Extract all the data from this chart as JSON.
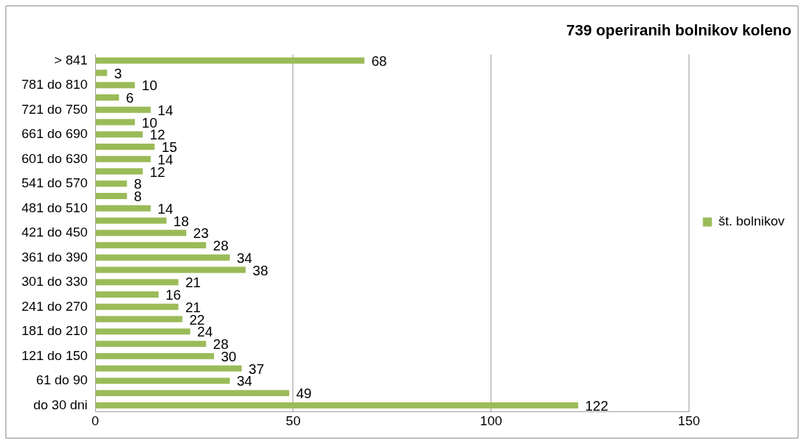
{
  "chart_data": {
    "type": "bar",
    "orientation": "horizontal",
    "title": "739 operiranih bolnikov koleno",
    "categories": [
      "> 841",
      null,
      "781 do 810",
      null,
      "721 do 750",
      null,
      "661 do 690",
      null,
      "601 do 630",
      null,
      "541 do 570",
      null,
      "481 do 510",
      null,
      "421 do 450",
      null,
      "361 do 390",
      null,
      "301 do 330",
      null,
      "241 do 270",
      null,
      "181 do 210",
      null,
      "121 do 150",
      null,
      "61 do 90",
      null,
      "do 30 dni"
    ],
    "series": [
      {
        "name": "št. bolnikov",
        "color": "#9bbb59",
        "values": [
          68,
          3,
          10,
          6,
          14,
          10,
          12,
          15,
          14,
          12,
          8,
          8,
          14,
          18,
          23,
          28,
          34,
          38,
          21,
          16,
          21,
          22,
          24,
          28,
          30,
          37,
          34,
          49,
          122
        ]
      }
    ],
    "xlim": [
      0,
      150
    ],
    "xticks": [
      0,
      50,
      100,
      150
    ],
    "grid": "x",
    "legend": "right",
    "data_labels": true
  }
}
